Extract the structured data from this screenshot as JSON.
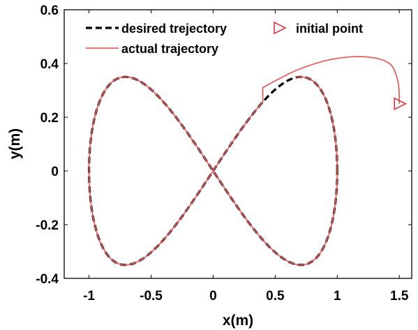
{
  "chart_data": {
    "type": "line",
    "xlabel": "x(m)",
    "ylabel": "y(m)",
    "xlim": [
      -1.2,
      1.6
    ],
    "ylim": [
      -0.4,
      0.6
    ],
    "x_ticks": [
      "-1",
      "-0.5",
      "0",
      "0.5",
      "1",
      "1.5"
    ],
    "y_ticks": [
      "-0.4",
      "-0.2",
      "0",
      "0.2",
      "0.4",
      "0.6"
    ],
    "grid": false,
    "legend_position": "top",
    "series": [
      {
        "name": "desired trejectory",
        "style": "dashed",
        "color": "#000000",
        "curve": "lemniscate of Gerono",
        "x_amplitude": 1.0,
        "y_amplitude": 0.35
      },
      {
        "name": "actual trajectory",
        "style": "solid",
        "color": "#e8605f",
        "start": [
          1.5,
          0.25
        ],
        "approach_points": [
          [
            1.5,
            0.25
          ],
          [
            1.49,
            0.33
          ],
          [
            1.42,
            0.4
          ],
          [
            1.22,
            0.425
          ],
          [
            0.95,
            0.415
          ],
          [
            0.7,
            0.38
          ],
          [
            0.52,
            0.34
          ],
          [
            0.4,
            0.31
          ]
        ],
        "joins_desired_at_x": 0.4
      }
    ],
    "markers": [
      {
        "name": "initial point",
        "shape": "triangle-right",
        "color": "#e8212a",
        "x": 1.5,
        "y": 0.25
      }
    ]
  }
}
